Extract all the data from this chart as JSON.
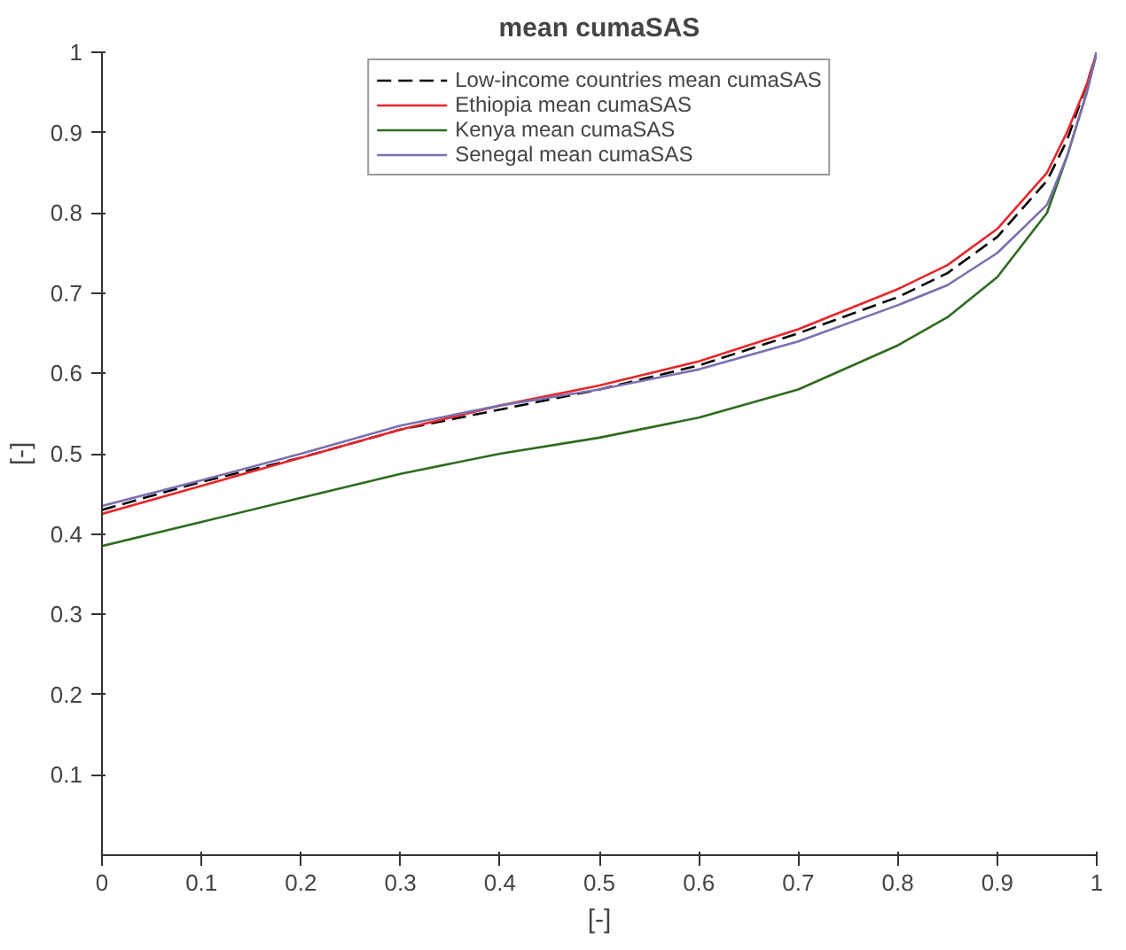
{
  "chart_data": {
    "type": "line",
    "title": "mean cumaSAS",
    "xlabel": "[-]",
    "ylabel": "[-]",
    "x": [
      0,
      0.1,
      0.2,
      0.3,
      0.4,
      0.5,
      0.6,
      0.7,
      0.8,
      0.85,
      0.9,
      0.95,
      0.97,
      0.99,
      1.0
    ],
    "series": [
      {
        "name": "Low-income countries mean cumaSAS",
        "color": "#000000",
        "line_style": "dashed",
        "values": [
          0.43,
          0.465,
          0.495,
          0.53,
          0.555,
          0.58,
          0.61,
          0.65,
          0.695,
          0.725,
          0.77,
          0.84,
          0.89,
          0.96,
          1.0
        ]
      },
      {
        "name": "Ethiopia mean cumaSAS",
        "color": "#e8262b",
        "values": [
          0.425,
          0.46,
          0.495,
          0.53,
          0.56,
          0.585,
          0.615,
          0.655,
          0.705,
          0.735,
          0.78,
          0.85,
          0.9,
          0.96,
          1.0
        ]
      },
      {
        "name": "Kenya mean cumaSAS",
        "color": "#2e6b1f",
        "values": [
          0.385,
          0.415,
          0.445,
          0.475,
          0.5,
          0.52,
          0.545,
          0.58,
          0.635,
          0.67,
          0.72,
          0.8,
          0.87,
          0.95,
          1.0
        ]
      },
      {
        "name": "Senegal mean cumaSAS",
        "color": "#7b6fb0",
        "values": [
          0.435,
          0.467,
          0.5,
          0.535,
          0.56,
          0.58,
          0.605,
          0.64,
          0.685,
          0.71,
          0.75,
          0.81,
          0.87,
          0.95,
          1.0
        ]
      }
    ],
    "xlim": [
      0,
      1
    ],
    "ylim": [
      0,
      1
    ],
    "xticks": [
      0,
      0.1,
      0.2,
      0.3,
      0.4,
      0.5,
      0.6,
      0.7,
      0.8,
      0.9,
      1
    ],
    "yticks": [
      0.1,
      0.2,
      0.3,
      0.4,
      0.5,
      0.6,
      0.7,
      0.8,
      0.9,
      1
    ],
    "grid": false,
    "legend": "top",
    "line_style": "solid",
    "marker": "none"
  }
}
